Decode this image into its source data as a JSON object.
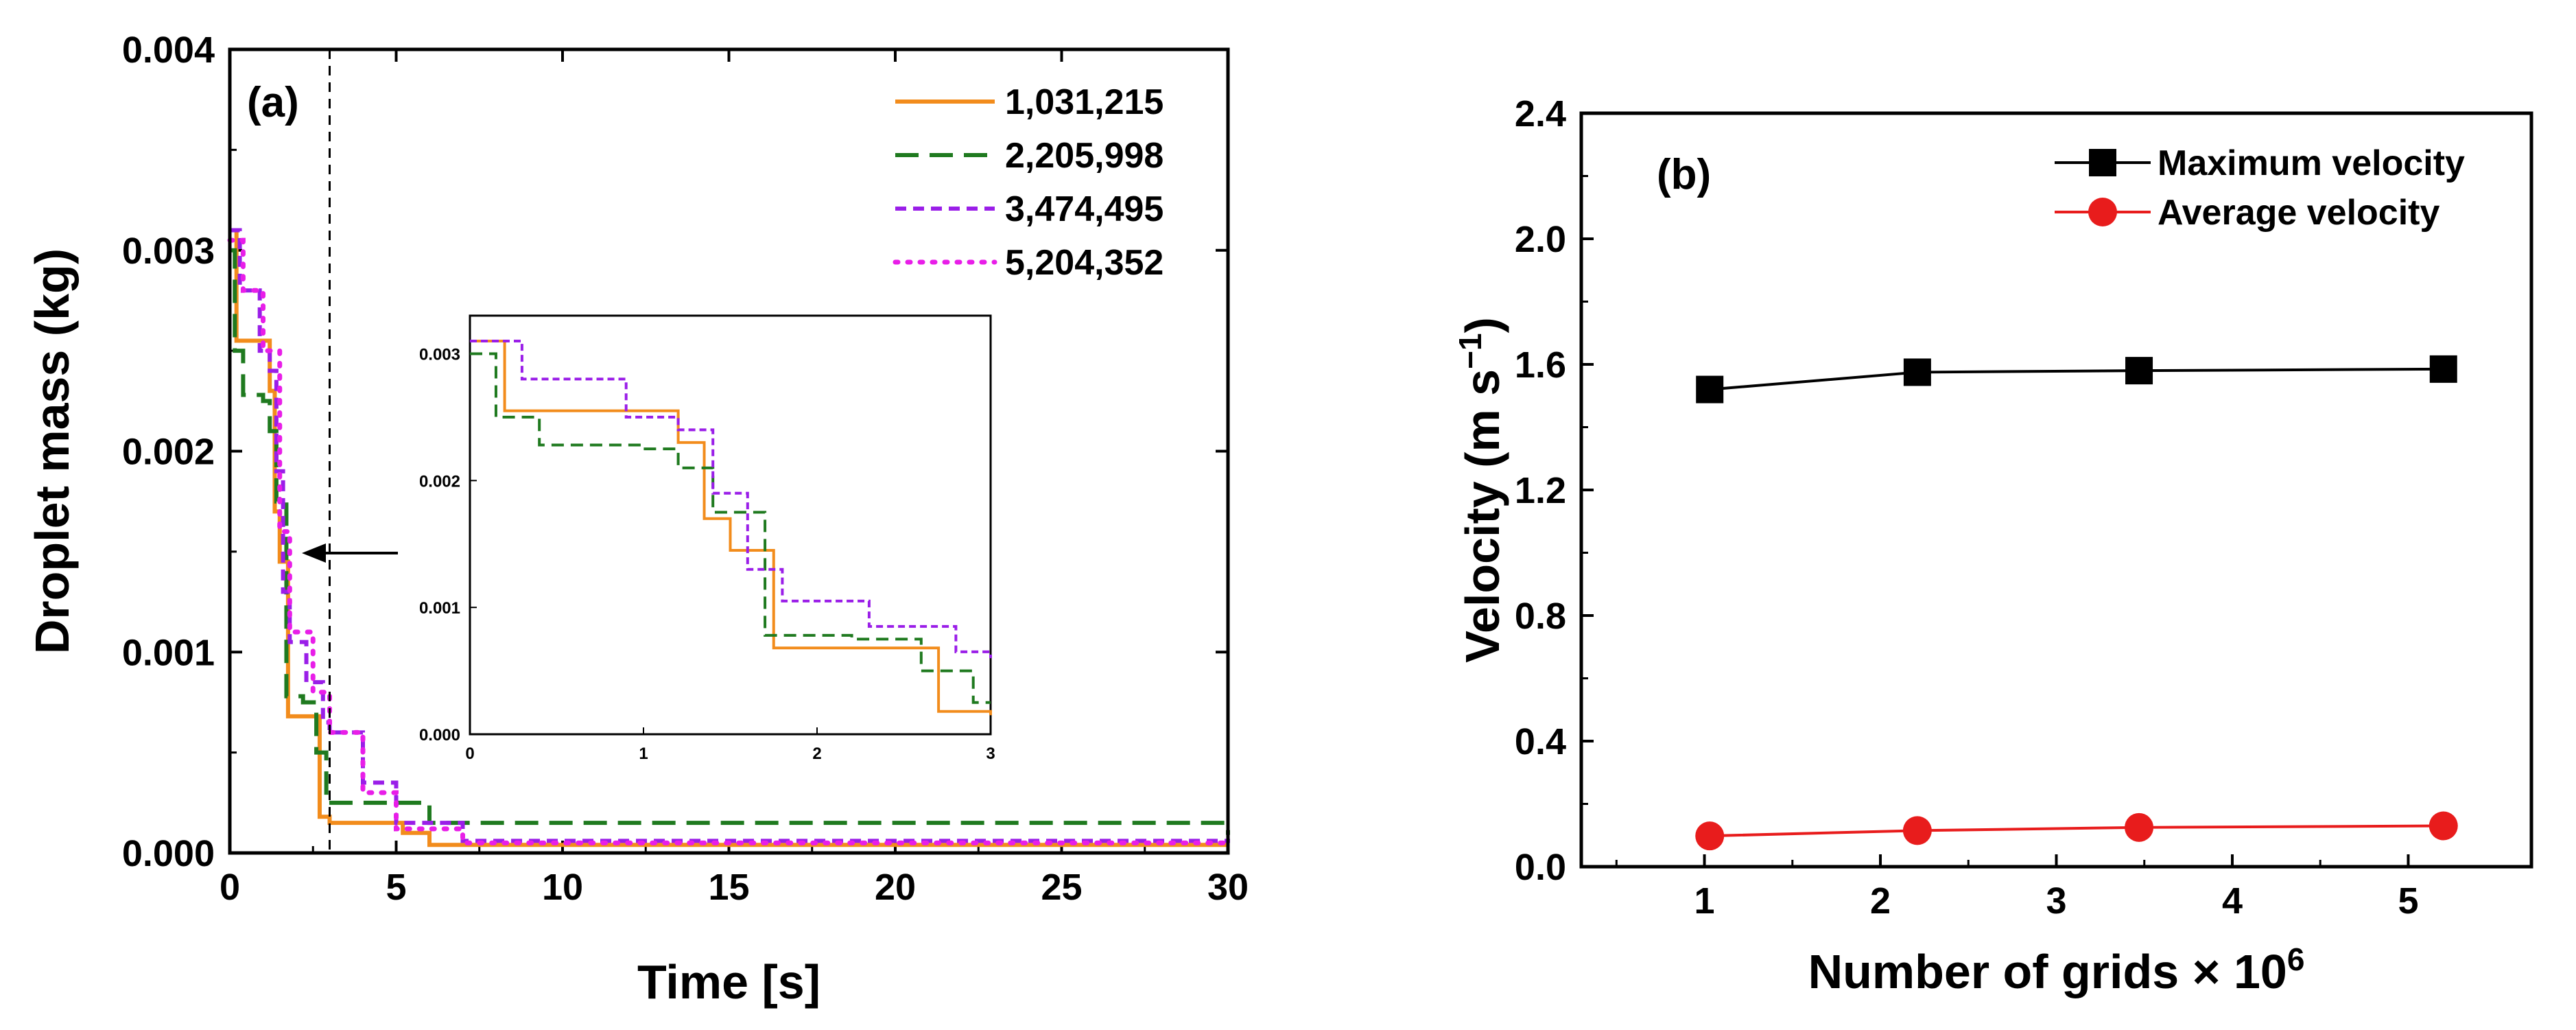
{
  "chart_data": [
    {
      "type": "line",
      "panel_label": "(a)",
      "xlabel": "Time [s]",
      "ylabel": "Droplet mass (kg)",
      "xlim": [
        0,
        30
      ],
      "ylim": [
        0,
        0.004
      ],
      "x_ticks": [
        "0",
        "5",
        "10",
        "15",
        "20",
        "25",
        "30"
      ],
      "y_ticks": [
        "0.000",
        "0.001",
        "0.002",
        "0.003",
        "0.004"
      ],
      "legend_position": "top-right",
      "annotation": "dashed vertical line at t = 3 s with arrow pointing to inset",
      "series": [
        {
          "name": "1,031,215",
          "color": "#f28c1c",
          "style": "solid",
          "x": [
            0,
            0.2,
            0.9,
            1.2,
            1.35,
            1.5,
            1.75,
            2.6,
            2.7,
            3.0,
            5.2,
            6.0,
            30
          ],
          "y": [
            0.0031,
            0.00255,
            0.00255,
            0.0023,
            0.0017,
            0.00145,
            0.00068,
            0.00068,
            0.00018,
            0.00015,
            0.0001,
            4e-05,
            4e-05
          ]
        },
        {
          "name": "2,205,998",
          "color": "#1f7a1f",
          "style": "dash",
          "x": [
            0,
            0.15,
            0.4,
            1.0,
            1.2,
            1.4,
            1.7,
            2.2,
            2.6,
            2.9,
            3.0,
            6.0,
            30
          ],
          "y": [
            0.003,
            0.0025,
            0.00228,
            0.00225,
            0.0021,
            0.00175,
            0.00078,
            0.00075,
            0.0005,
            0.00025,
            0.00025,
            0.00015,
            9e-05
          ]
        },
        {
          "name": "3,474,495",
          "color": "#9a1ee8",
          "style": "shortdash",
          "x": [
            0,
            0.3,
            0.9,
            1.2,
            1.4,
            1.6,
            1.8,
            2.3,
            2.8,
            3.0,
            4.0,
            5.0,
            7.0,
            30
          ],
          "y": [
            0.0031,
            0.0028,
            0.0025,
            0.0024,
            0.0019,
            0.0013,
            0.00105,
            0.00085,
            0.00065,
            0.0006,
            0.00035,
            0.00015,
            6e-05,
            5e-05
          ]
        },
        {
          "name": "5,204,352",
          "color": "#e81ee8",
          "style": "dot",
          "x": [
            0,
            0.4,
            1.0,
            1.5,
            1.8,
            2.5,
            3.0,
            4.0,
            5.0,
            7.0,
            30
          ],
          "y": [
            0.00305,
            0.0028,
            0.0025,
            0.0016,
            0.0011,
            0.0008,
            0.0006,
            0.0003,
            0.00012,
            5e-05,
            4e-05
          ]
        }
      ],
      "inset": {
        "xlim": [
          0,
          3
        ],
        "ylim": [
          0,
          0.0033
        ],
        "x_ticks": [
          "0",
          "1",
          "2",
          "3"
        ],
        "y_ticks": [
          "0.000",
          "0.001",
          "0.002",
          "0.003"
        ],
        "series_shown": [
          "1,031,215",
          "2,205,998",
          "3,474,495"
        ]
      }
    },
    {
      "type": "line",
      "panel_label": "(b)",
      "xlabel": "Number of grids × 10",
      "xlabel_superscript": "6",
      "ylabel": "Velocity (m s",
      "ylabel_superscript": "−1",
      "ylabel_close": ")",
      "xlim": [
        0.3,
        5.7
      ],
      "ylim": [
        0,
        2.4
      ],
      "x_ticks": [
        "1",
        "2",
        "3",
        "4",
        "5"
      ],
      "y_ticks": [
        "0.0",
        "0.4",
        "0.8",
        "1.2",
        "1.6",
        "2.0",
        "2.4"
      ],
      "legend_position": "top-right",
      "series": [
        {
          "name": "Maximum velocity",
          "color": "#000000",
          "marker": "square",
          "x": [
            1.03,
            2.21,
            3.47,
            5.2
          ],
          "y": [
            1.52,
            1.575,
            1.58,
            1.585
          ]
        },
        {
          "name": "Average velocity",
          "color": "#e81c1c",
          "marker": "circle",
          "x": [
            1.03,
            2.21,
            3.47,
            5.2
          ],
          "y": [
            0.098,
            0.115,
            0.125,
            0.13
          ]
        }
      ]
    }
  ]
}
